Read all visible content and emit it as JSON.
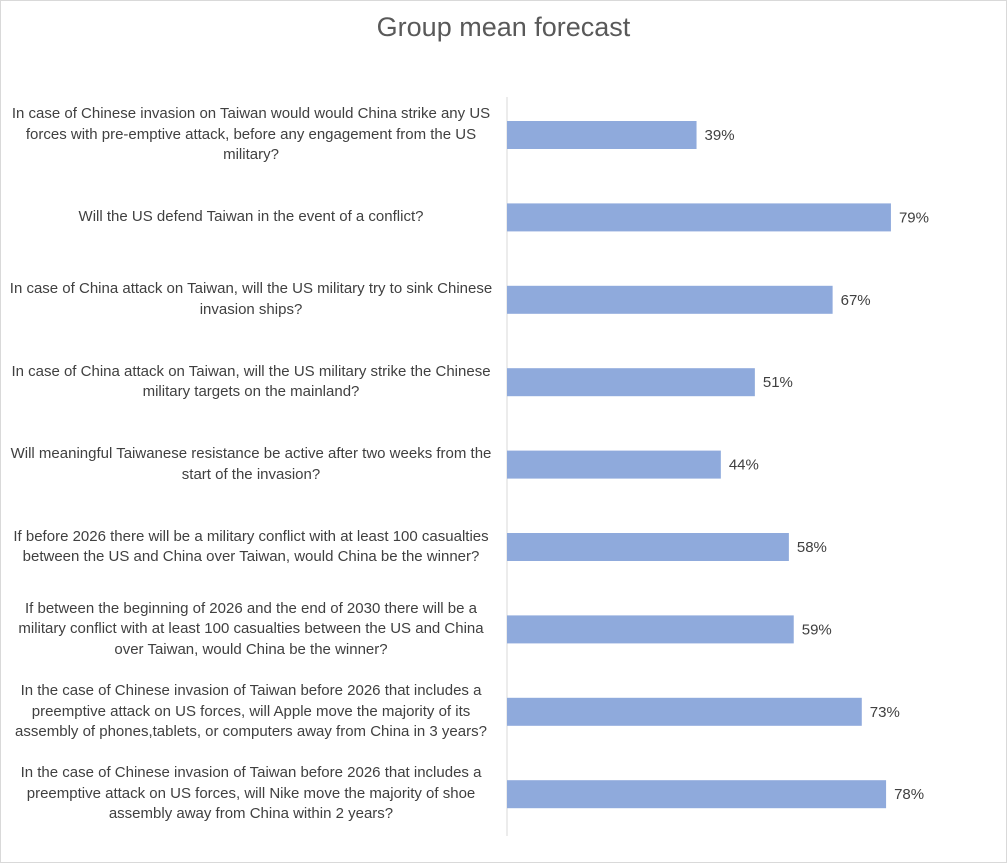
{
  "chart_data": {
    "type": "bar",
    "orientation": "horizontal",
    "title": "Group mean forecast",
    "categories": [
      "In case of Chinese invasion on Taiwan would would China strike any US forces with pre-emptive attack, before any engagement from the US military?",
      "Will the US defend Taiwan in the event of a conflict?",
      "In case of China attack on Taiwan, will the US military try to sink Chinese invasion ships?",
      "In case of China attack on Taiwan, will the US military strike the Chinese military targets on the mainland?",
      "Will meaningful Taiwanese resistance be active after two weeks from the start of the invasion?",
      "If before 2026 there will be a military conflict with at least 100 casualties between the US and China over Taiwan, would China be the winner?",
      "If between the beginning of 2026 and the end of 2030 there will be a military conflict with at least 100 casualties between the US and China over Taiwan, would China be the winner?",
      "In the case of Chinese invasion of Taiwan before 2026 that includes a preemptive attack on US forces, will Apple move the majority of its assembly of phones,tablets, or computers away from China in 3 years?",
      "In the case of Chinese invasion of Taiwan before 2026 that includes a preemptive attack on US forces, will Nike move the majority of shoe assembly away from China within 2 years?"
    ],
    "values": [
      39,
      79,
      67,
      51,
      44,
      58,
      59,
      73,
      78
    ],
    "data_labels": [
      "39%",
      "79%",
      "67%",
      "51%",
      "44%",
      "58%",
      "59%",
      "73%",
      "78%"
    ],
    "value_unit": "%",
    "xlim": [
      0,
      100
    ],
    "bar_color": "#8faadc",
    "grid": false,
    "legend": "none"
  }
}
